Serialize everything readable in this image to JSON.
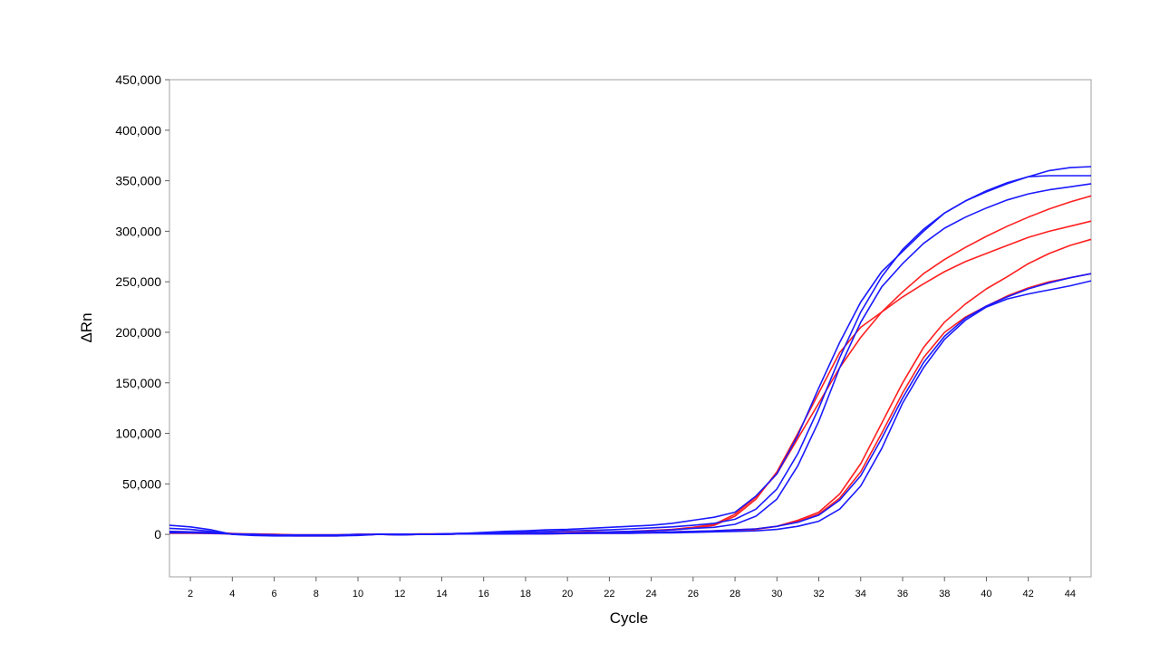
{
  "chart_data": {
    "type": "line",
    "title": "",
    "xlabel": "Cycle",
    "ylabel": "ΔRn",
    "xlim": [
      1,
      45
    ],
    "ylim": [
      -42000,
      450000
    ],
    "x_ticks": [
      2,
      4,
      6,
      8,
      10,
      12,
      14,
      16,
      18,
      20,
      22,
      24,
      26,
      28,
      30,
      32,
      34,
      36,
      38,
      40,
      42,
      44
    ],
    "y_ticks": [
      0,
      50000,
      100000,
      150000,
      200000,
      250000,
      300000,
      350000,
      400000,
      450000
    ],
    "y_tick_labels": [
      "0",
      "50,000",
      "100,000",
      "150,000",
      "200,000",
      "250,000",
      "300,000",
      "350,000",
      "400,000",
      "450,000"
    ],
    "grid": false,
    "legend": "none",
    "colors": {
      "red": "#ff2020",
      "blue": "#1a1aff"
    },
    "x": [
      1,
      2,
      3,
      4,
      5,
      6,
      7,
      8,
      9,
      10,
      11,
      12,
      13,
      14,
      15,
      16,
      17,
      18,
      19,
      20,
      21,
      22,
      23,
      24,
      25,
      26,
      27,
      28,
      29,
      30,
      31,
      32,
      33,
      34,
      35,
      36,
      37,
      38,
      39,
      40,
      41,
      42,
      43,
      44,
      45
    ],
    "series": [
      {
        "color": "red",
        "values": [
          3000,
          2500,
          2000,
          1000,
          0,
          -1000,
          -1500,
          -1500,
          -1500,
          -500,
          0,
          -500,
          0,
          0,
          500,
          500,
          500,
          1000,
          1000,
          1500,
          2000,
          2000,
          3000,
          3500,
          4500,
          6000,
          9000,
          18000,
          35000,
          62000,
          100000,
          140000,
          180000,
          205000,
          220000,
          235000,
          248000,
          260000,
          270000,
          278000,
          286000,
          294000,
          300000,
          305000,
          310000
        ]
      },
      {
        "color": "red",
        "values": [
          2000,
          2000,
          1500,
          500,
          500,
          0,
          -500,
          -500,
          -500,
          0,
          0,
          0,
          500,
          500,
          1000,
          1000,
          1000,
          1500,
          1500,
          2000,
          2500,
          2500,
          3000,
          4000,
          5000,
          7000,
          10000,
          20000,
          37000,
          60000,
          95000,
          130000,
          165000,
          195000,
          220000,
          240000,
          258000,
          272000,
          284000,
          295000,
          305000,
          314000,
          322000,
          329000,
          335000
        ]
      },
      {
        "color": "red",
        "values": [
          1000,
          1000,
          800,
          500,
          200,
          0,
          -500,
          -500,
          -500,
          0,
          0,
          0,
          0,
          0,
          500,
          500,
          500,
          500,
          500,
          800,
          1000,
          1000,
          1200,
          1500,
          2000,
          2500,
          3000,
          4000,
          5000,
          8000,
          14000,
          22000,
          40000,
          70000,
          110000,
          150000,
          185000,
          210000,
          228000,
          243000,
          255000,
          268000,
          278000,
          286000,
          292000
        ]
      },
      {
        "color": "red",
        "values": [
          2500,
          2000,
          1500,
          500,
          0,
          -500,
          -1000,
          -1000,
          -1000,
          -500,
          0,
          0,
          0,
          0,
          500,
          500,
          500,
          800,
          800,
          1000,
          1200,
          1500,
          1800,
          2000,
          2500,
          3000,
          3500,
          4500,
          5500,
          8000,
          13000,
          20000,
          36000,
          62000,
          100000,
          140000,
          175000,
          200000,
          215000,
          226000,
          236000,
          244000,
          250000,
          254000,
          258000
        ]
      },
      {
        "color": "blue",
        "values": [
          9000,
          7500,
          4500,
          0,
          -1000,
          -1500,
          -1500,
          -1500,
          -1500,
          -1000,
          0,
          -500,
          0,
          500,
          1000,
          2000,
          3000,
          3500,
          4500,
          5000,
          6000,
          7000,
          8000,
          9000,
          11000,
          14000,
          17000,
          22000,
          38000,
          60000,
          98000,
          145000,
          190000,
          230000,
          260000,
          280000,
          300000,
          318000,
          330000,
          340000,
          348000,
          354000,
          355000,
          355000,
          355000
        ]
      },
      {
        "color": "blue",
        "values": [
          6000,
          5000,
          3000,
          0,
          -500,
          -1000,
          -1000,
          -1000,
          -1000,
          -500,
          0,
          0,
          0,
          500,
          1000,
          1500,
          2000,
          2500,
          3000,
          3500,
          4000,
          4500,
          5500,
          6500,
          7500,
          9000,
          11000,
          15000,
          25000,
          45000,
          80000,
          125000,
          175000,
          220000,
          255000,
          282000,
          302000,
          318000,
          330000,
          339000,
          347000,
          354000,
          360000,
          363000,
          364000
        ]
      },
      {
        "color": "blue",
        "values": [
          3000,
          2500,
          2000,
          500,
          0,
          -500,
          -1000,
          -1000,
          -1000,
          -500,
          0,
          -500,
          0,
          0,
          500,
          500,
          1000,
          1000,
          1500,
          1500,
          2000,
          2500,
          3000,
          3500,
          4500,
          6000,
          7000,
          10000,
          18000,
          35000,
          68000,
          112000,
          165000,
          210000,
          245000,
          268000,
          288000,
          303000,
          314000,
          323000,
          331000,
          337000,
          341000,
          344000,
          347000
        ]
      },
      {
        "color": "blue",
        "values": [
          1500,
          1500,
          1000,
          500,
          0,
          -500,
          -500,
          -500,
          -500,
          0,
          0,
          0,
          0,
          0,
          500,
          500,
          500,
          500,
          500,
          800,
          1000,
          1000,
          1000,
          1500,
          1500,
          2000,
          2500,
          3000,
          3500,
          5000,
          8000,
          13000,
          25000,
          48000,
          85000,
          130000,
          165000,
          193000,
          212000,
          225000,
          233000,
          238000,
          242000,
          246000,
          251000
        ]
      },
      {
        "color": "blue",
        "values": [
          2500,
          2000,
          1500,
          500,
          0,
          -500,
          -1000,
          -1000,
          -1000,
          -500,
          0,
          0,
          0,
          0,
          500,
          500,
          500,
          800,
          800,
          1000,
          1200,
          1500,
          1800,
          2000,
          2500,
          3000,
          3500,
          4500,
          5500,
          8000,
          12000,
          19000,
          34000,
          58000,
          95000,
          135000,
          170000,
          196000,
          214000,
          226000,
          235000,
          243000,
          249000,
          254000,
          258000
        ]
      }
    ]
  }
}
